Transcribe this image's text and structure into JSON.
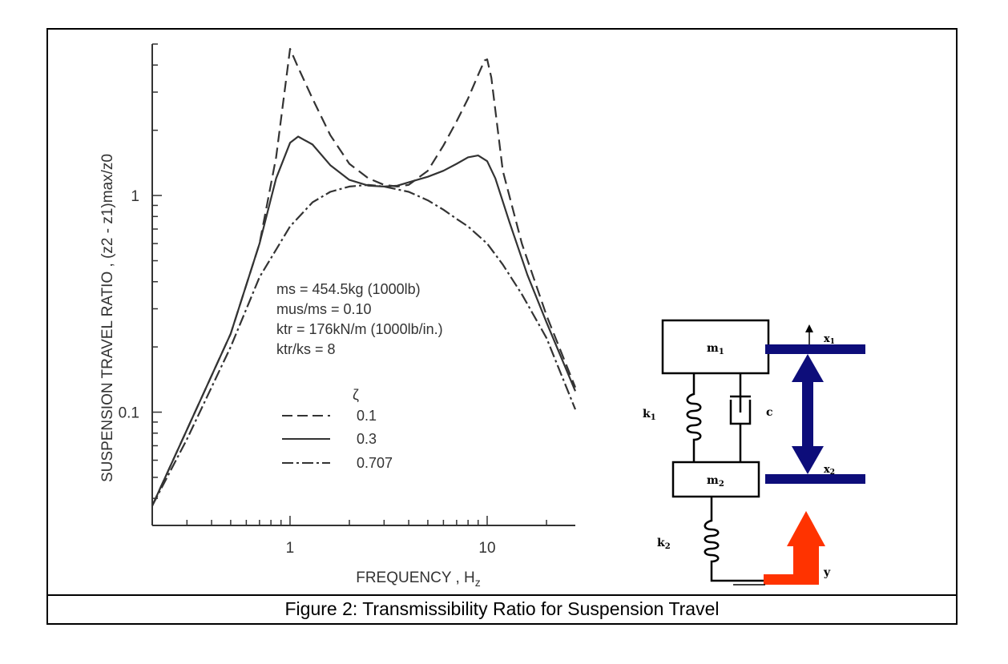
{
  "caption": "Figure 2: Transmissibility Ratio for Suspension Travel",
  "chart_data": {
    "type": "line",
    "x_scale": "log",
    "y_scale": "log",
    "xlim": [
      0.2,
      28
    ],
    "ylim": [
      0.03,
      5
    ],
    "xlabel_main": "FREQUENCY , H",
    "xlabel_sub": "z",
    "ylabel": "SUSPENSION TRAVEL RATIO , (z2 - z1)max/z0",
    "x_ticks": [
      {
        "value": 1,
        "label": "1"
      },
      {
        "value": 10,
        "label": "10"
      }
    ],
    "y_ticks": [
      {
        "value": 1,
        "label": "1"
      },
      {
        "value": 0.1,
        "label": "0.1"
      }
    ],
    "annotations": [
      "ms = 454.5kg (1000lb)",
      "mus/ms = 0.10",
      "ktr = 176kN/m (1000lb/in.)",
      "ktr/ks = 8"
    ],
    "legend_title": "ζ",
    "legend_position": "center",
    "series": [
      {
        "name": "0.1",
        "dash": "dashed",
        "x": [
          0.2,
          0.3,
          0.5,
          0.7,
          0.85,
          0.95,
          1.0,
          1.1,
          1.3,
          1.6,
          2.0,
          2.5,
          3.0,
          3.5,
          4.0,
          5.0,
          6.0,
          7.0,
          8.0,
          9.0,
          9.7,
          10.0,
          10.5,
          12.0,
          15.0,
          20.0,
          28.0
        ],
        "y": [
          0.037,
          0.083,
          0.23,
          0.6,
          1.5,
          3.3,
          4.75,
          3.9,
          2.8,
          1.9,
          1.4,
          1.2,
          1.12,
          1.1,
          1.12,
          1.3,
          1.7,
          2.2,
          2.8,
          3.6,
          4.2,
          4.25,
          3.5,
          1.3,
          0.6,
          0.28,
          0.13
        ]
      },
      {
        "name": "0.3",
        "dash": "solid",
        "x": [
          0.2,
          0.3,
          0.5,
          0.7,
          0.85,
          1.0,
          1.1,
          1.3,
          1.6,
          2.0,
          2.5,
          3.0,
          3.5,
          4.0,
          5.0,
          6.0,
          7.0,
          8.0,
          9.0,
          10.0,
          11.0,
          13.0,
          16.0,
          20.0,
          28.0
        ],
        "y": [
          0.037,
          0.083,
          0.23,
          0.6,
          1.2,
          1.75,
          1.87,
          1.72,
          1.38,
          1.18,
          1.11,
          1.1,
          1.11,
          1.15,
          1.22,
          1.3,
          1.4,
          1.5,
          1.53,
          1.44,
          1.2,
          0.75,
          0.43,
          0.26,
          0.125
        ]
      },
      {
        "name": "0.707",
        "dash": "dashdot",
        "x": [
          0.2,
          0.3,
          0.5,
          0.7,
          1.0,
          1.3,
          1.6,
          2.0,
          2.5,
          3.0,
          4.0,
          5.0,
          6.0,
          7.0,
          8.0,
          10.0,
          12.0,
          15.0,
          20.0,
          28.0
        ],
        "y": [
          0.037,
          0.075,
          0.2,
          0.42,
          0.72,
          0.93,
          1.04,
          1.1,
          1.12,
          1.1,
          1.04,
          0.95,
          0.86,
          0.78,
          0.72,
          0.6,
          0.48,
          0.35,
          0.22,
          0.103
        ]
      }
    ]
  },
  "diagram": {
    "mass_top": "m",
    "mass_top_sub": "1",
    "mass_bottom": "m",
    "mass_bottom_sub": "2",
    "spring_top": "k",
    "spring_top_sub": "1",
    "spring_bottom": "k",
    "spring_bottom_sub": "2",
    "damper": "c",
    "x_top": "x",
    "x_top_sub": "1",
    "x_bottom": "x",
    "x_bottom_sub": "2",
    "input": "y",
    "colors": {
      "arrow_navy": "#0d0d7a",
      "input_arrow": "#ff3300",
      "ink": "#000000"
    }
  }
}
